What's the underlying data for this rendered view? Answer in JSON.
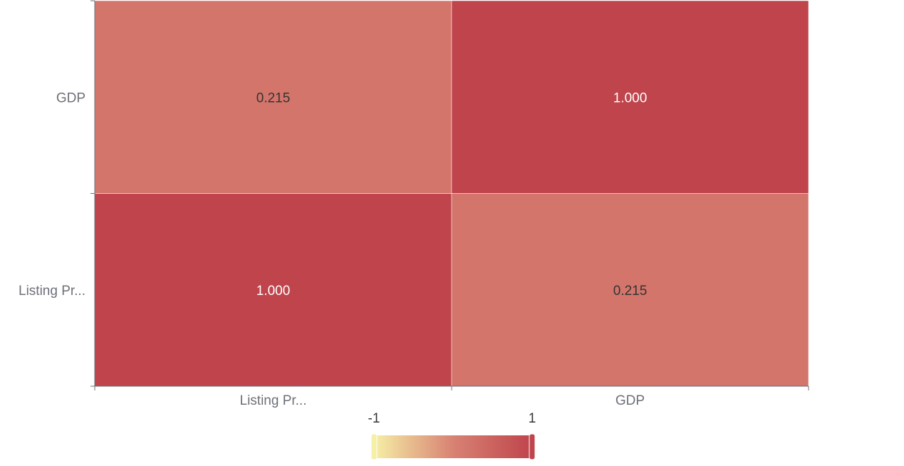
{
  "chart_data": {
    "type": "heatmap",
    "x_categories": [
      "Listing Pr...",
      "GDP"
    ],
    "y_categories": [
      "Listing Pr...",
      "GDP"
    ],
    "cells": [
      {
        "x": 0,
        "y": 0,
        "value": 1.0,
        "label": "1.000"
      },
      {
        "x": 1,
        "y": 0,
        "value": 0.215,
        "label": "0.215"
      },
      {
        "x": 0,
        "y": 1,
        "value": 0.215,
        "label": "0.215"
      },
      {
        "x": 1,
        "y": 1,
        "value": 1.0,
        "label": "1.000"
      }
    ],
    "visual_map": {
      "min": -1,
      "max": 1,
      "min_label": "-1",
      "max_label": "1",
      "colors": [
        "#f6efa6",
        "#d88273",
        "#bf444c"
      ]
    }
  }
}
